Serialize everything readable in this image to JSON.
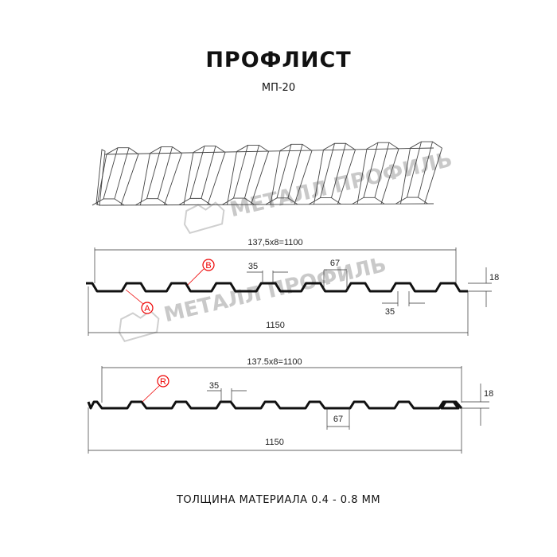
{
  "header": {
    "title": "ПРОФЛИСТ",
    "subtitle": "МП-20"
  },
  "watermark": {
    "text": "МЕТАЛЛ ПРОФИЛЬ",
    "color": "#c9c9c9"
  },
  "profile_top": {
    "pitch_label": "137,5x8=1100",
    "width_label": "1150",
    "crest_label": "35",
    "valley_label": "67",
    "bottom_label": "35",
    "height_label": "18",
    "marker_a": "A",
    "marker_b": "B"
  },
  "profile_bottom": {
    "pitch_label": "137.5x8=1100",
    "width_label": "1150",
    "crest_label": "35",
    "valley_label": "67",
    "height_label": "18",
    "marker_r": "R"
  },
  "footer": {
    "text": "ТОЛЩИНА МАТЕРИАЛА 0.4 - 0.8 ММ"
  },
  "colors": {
    "marker": "#e00000",
    "profile": "#111111",
    "dimension": "#333333"
  }
}
